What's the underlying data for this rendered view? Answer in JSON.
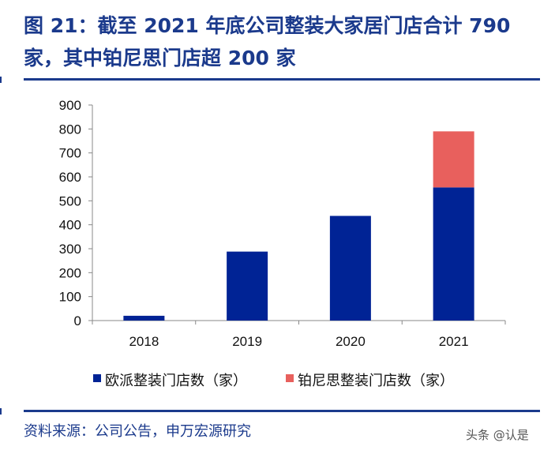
{
  "header": {
    "title": "图 21：截至 2021 年底公司整装大家居门店合计 790 家，其中铂尼思门店超 200 家"
  },
  "chart_data": {
    "type": "bar",
    "stacked": true,
    "categories": [
      "2018",
      "2019",
      "2020",
      "2021"
    ],
    "series": [
      {
        "name": "欧派整装门店数（家）",
        "color": "#002395",
        "values": [
          20,
          288,
          437,
          556
        ]
      },
      {
        "name": "铂尼思整装门店数（家）",
        "color": "#E8605D",
        "values": [
          0,
          0,
          0,
          234
        ]
      }
    ],
    "ylim": [
      0,
      900
    ],
    "yticks": [
      0,
      100,
      200,
      300,
      400,
      500,
      600,
      700,
      800,
      900
    ],
    "legend_position": "bottom",
    "grid": false
  },
  "footer": {
    "source": "资料来源：公司公告，申万宏源研究",
    "watermark": "头条 @认是"
  }
}
